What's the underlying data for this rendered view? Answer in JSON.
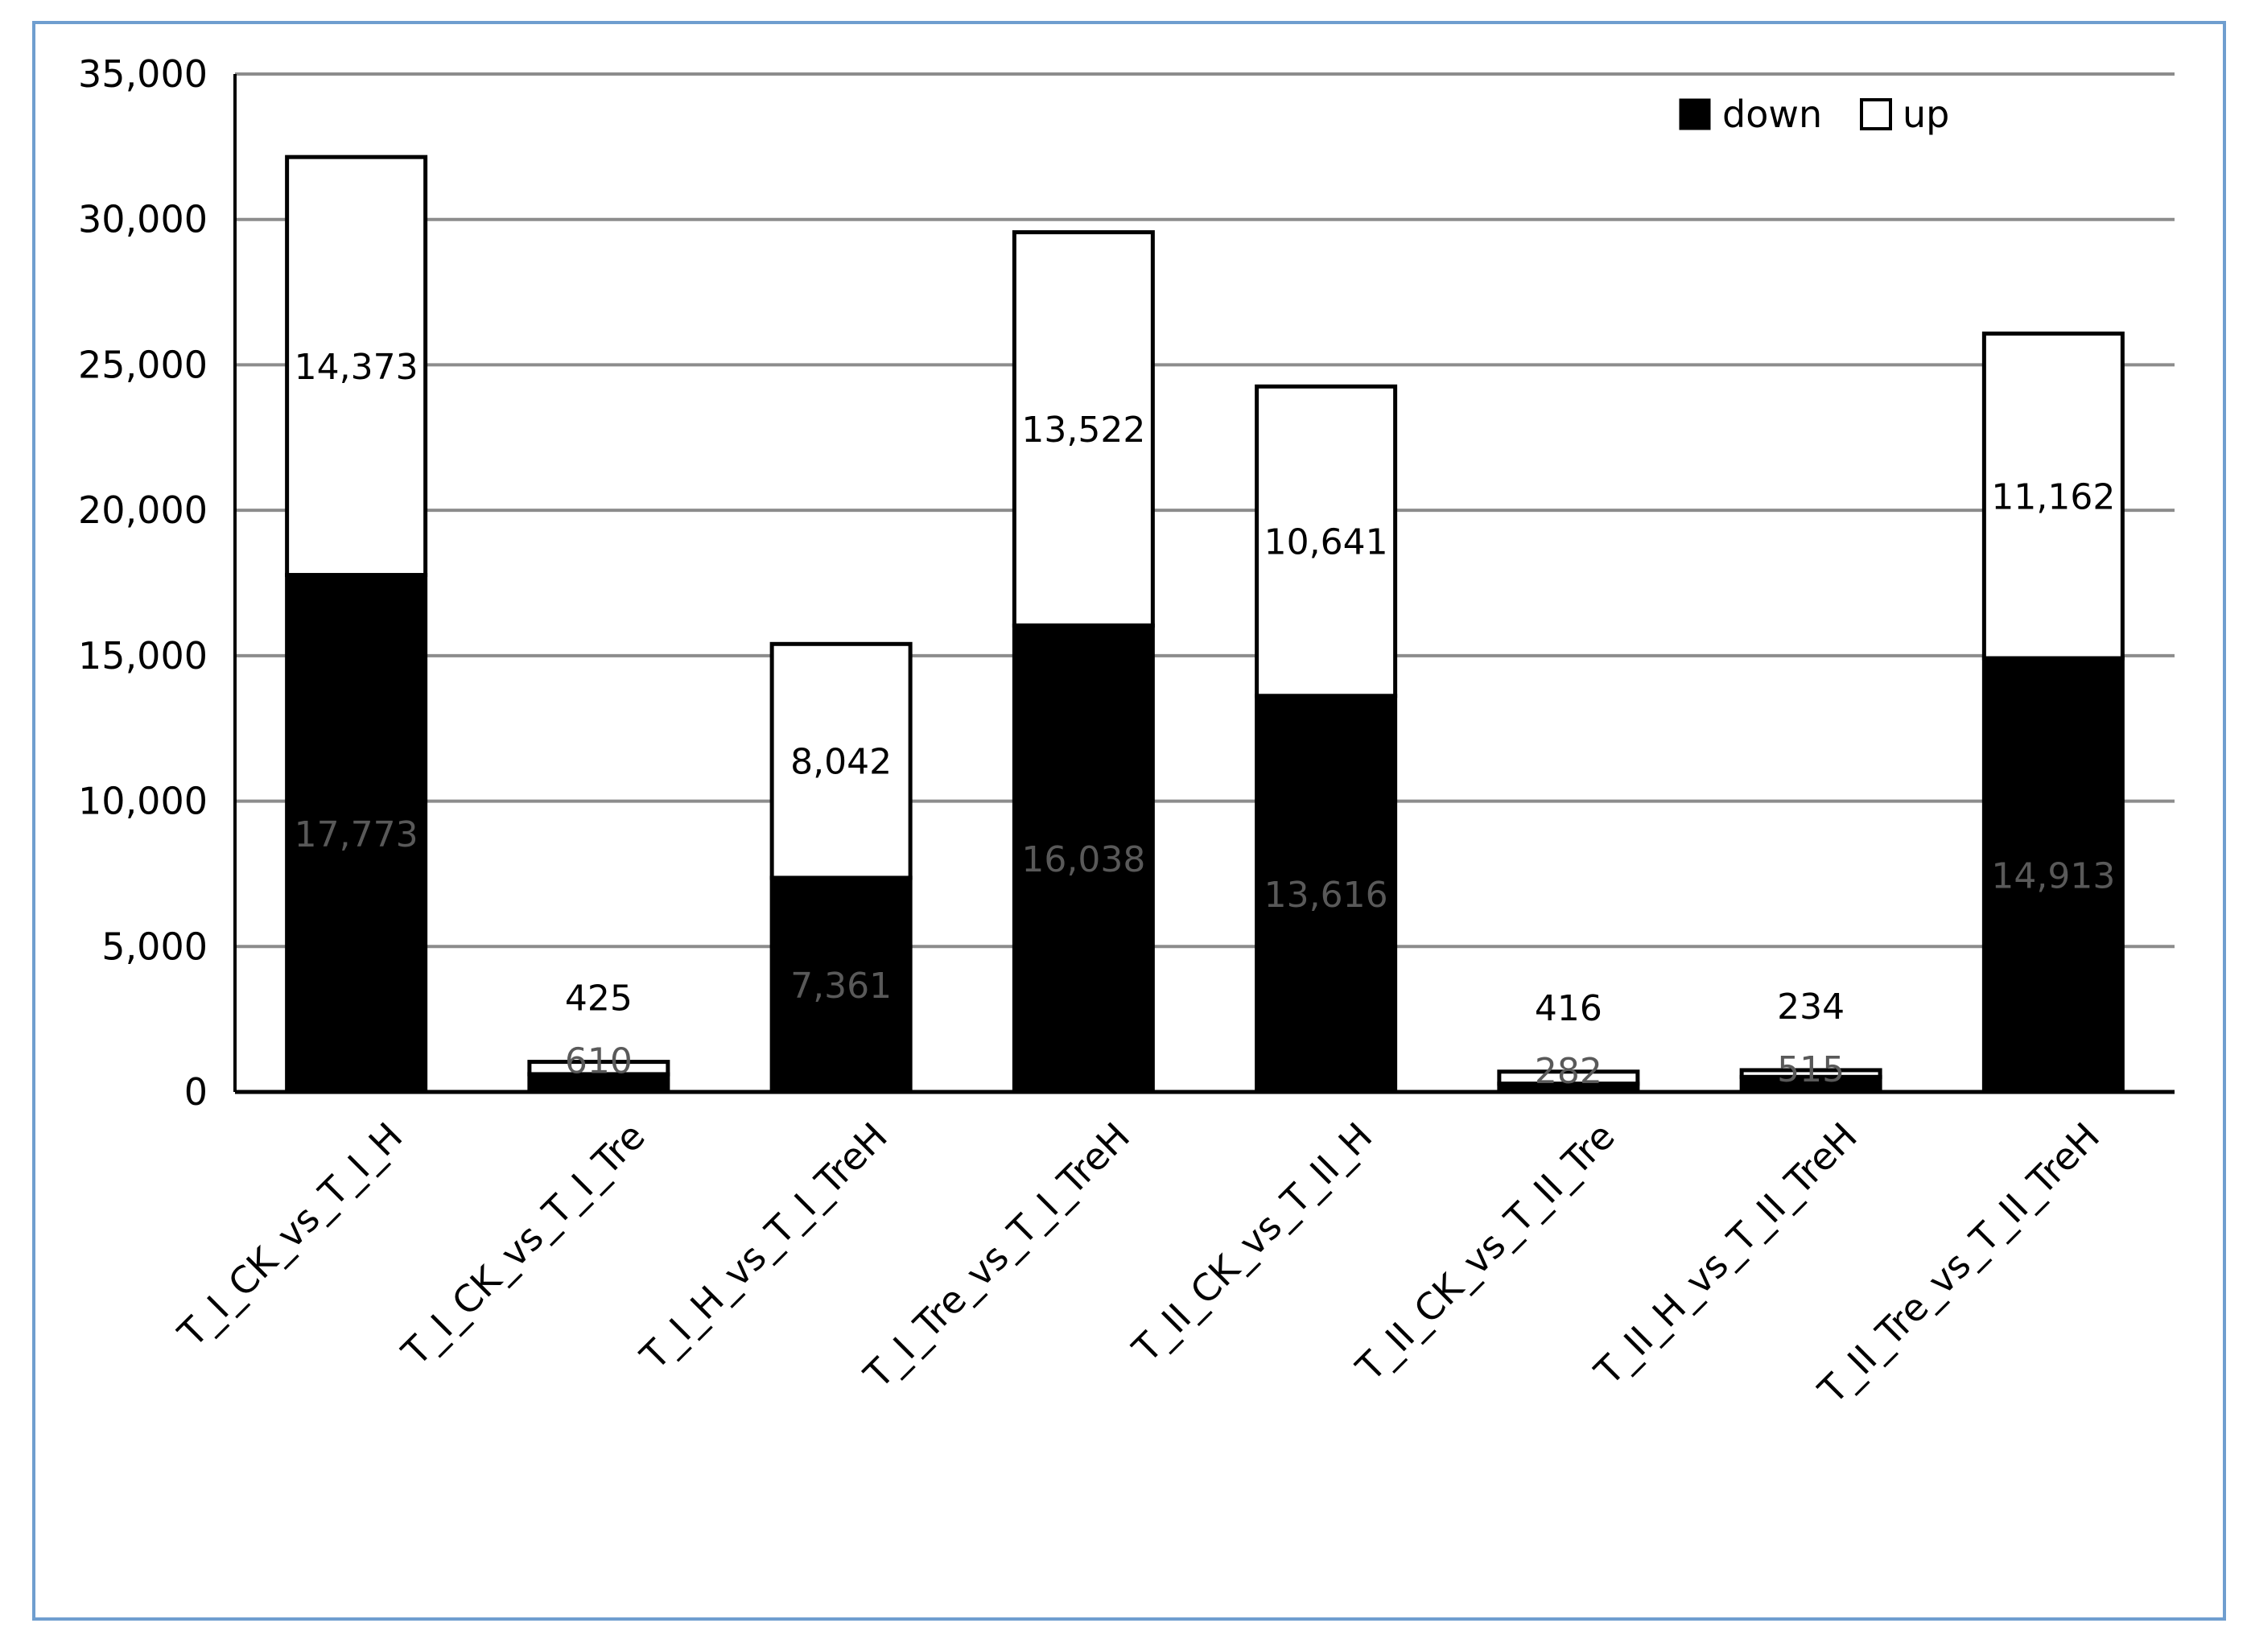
{
  "chart_data": {
    "type": "bar",
    "stacked": true,
    "categories": [
      "T_I_CK_vs_T_I_H",
      "T_I_CK_vs_T_I_Tre",
      "T_I_H_vs_T_I_TreH",
      "T_I_Tre_vs_T_I_TreH",
      "T_II_CK_vs_T_II_H",
      "T_II_CK_vs_T_II_Tre",
      "T_II_H_vs_T_II_TreH",
      "T_II_Tre_vs_T_II_TreH"
    ],
    "series": [
      {
        "name": "down",
        "color": "#000000",
        "values": [
          17773,
          610,
          7361,
          16038,
          13616,
          282,
          515,
          14913
        ],
        "labels": [
          "17,773",
          "610",
          "7,361",
          "16,038",
          "13,616",
          "282",
          "515",
          "14,913"
        ]
      },
      {
        "name": "up",
        "color": "#ffffff",
        "values": [
          14373,
          425,
          8042,
          13522,
          10641,
          416,
          234,
          11162
        ],
        "labels": [
          "14,373",
          "425",
          "8,042",
          "13,522",
          "10,641",
          "416",
          "234",
          "11,162"
        ]
      }
    ],
    "y_ticks": [
      0,
      5000,
      10000,
      15000,
      20000,
      25000,
      30000,
      35000
    ],
    "y_tick_labels": [
      "0",
      "5,000",
      "10,000",
      "15,000",
      "20,000",
      "25,000",
      "30,000",
      "35,000"
    ],
    "ylim": [
      0,
      35000
    ],
    "grid": true,
    "legend": "top-right",
    "title": "",
    "xlabel": "",
    "ylabel": ""
  }
}
